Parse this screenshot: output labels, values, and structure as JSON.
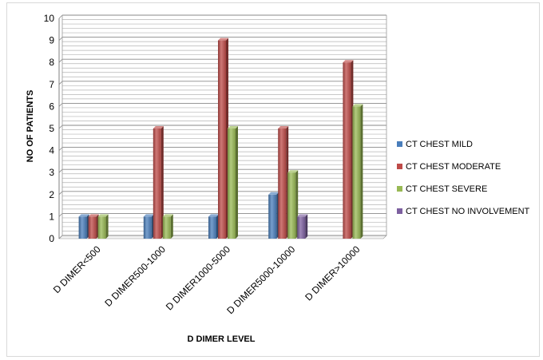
{
  "chart_data": {
    "type": "bar",
    "title": "",
    "xlabel": "D DIMER LEVEL",
    "ylabel": "NO OF PATIENTS",
    "ylim": [
      0,
      10
    ],
    "yticks": [
      0,
      1,
      2,
      3,
      4,
      5,
      6,
      7,
      8,
      9,
      10
    ],
    "grid": true,
    "legend_position": "right",
    "categories": [
      "D DIMER<500",
      "D DIMER500-1000",
      "D DIMER1000-5000",
      "D DIMER5000-10000",
      "D DIMER>10000"
    ],
    "series": [
      {
        "name": "CT CHEST MILD",
        "color": "#4a7ebb",
        "values": [
          1,
          1,
          1,
          2,
          0
        ]
      },
      {
        "name": "CT CHEST MODERATE",
        "color": "#be4b48",
        "values": [
          1,
          5,
          9,
          5,
          8
        ]
      },
      {
        "name": "CT CHEST SEVERE",
        "color": "#98b954",
        "values": [
          1,
          1,
          5,
          3,
          6
        ]
      },
      {
        "name": "CT CHEST NO INVOLVEMENT",
        "color": "#7d60a0",
        "values": [
          0,
          0,
          0,
          1,
          0
        ]
      }
    ]
  }
}
